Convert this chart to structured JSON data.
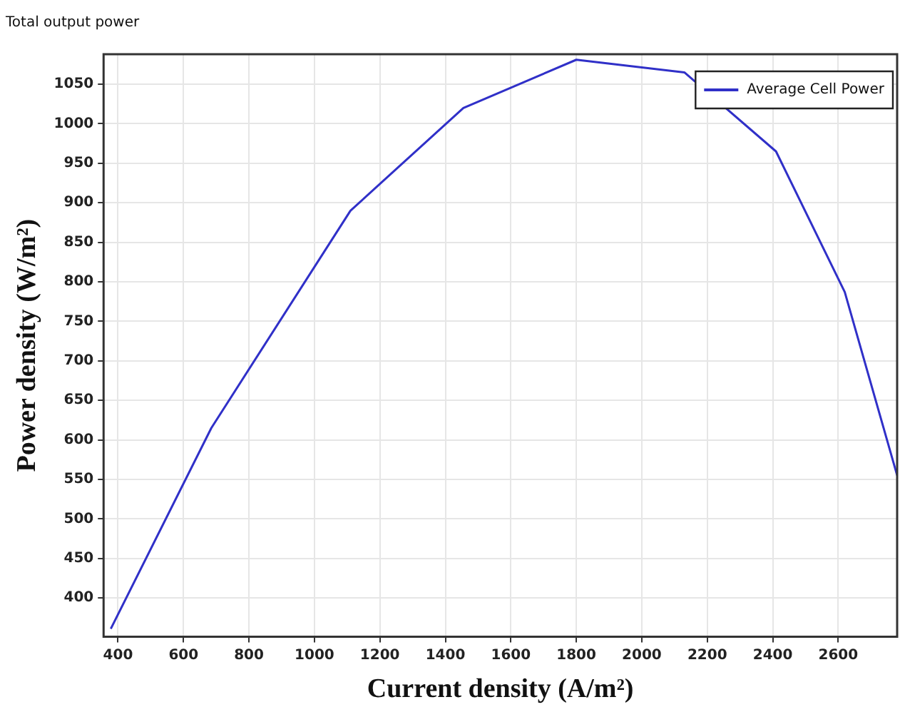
{
  "chart_data": {
    "type": "line",
    "title": "Total output power",
    "xlabel": "Current density (A/m²)",
    "ylabel": "Power density (W/m²)",
    "series": [
      {
        "name": "Average Cell Power",
        "color": "#3030c8",
        "x": [
          378,
          685,
          1110,
          1455,
          1800,
          2130,
          2410,
          2620,
          2780
        ],
        "values": [
          361,
          615,
          890,
          1020,
          1081,
          1065,
          965,
          787,
          555
        ]
      }
    ],
    "xlim": [
      356,
      2780
    ],
    "xticks": [
      400,
      600,
      800,
      1000,
      1200,
      1400,
      1600,
      1800,
      2000,
      2200,
      2400,
      2600
    ],
    "ylim": [
      351,
      1088
    ],
    "yticks": [
      400,
      450,
      500,
      550,
      600,
      650,
      700,
      750,
      800,
      850,
      900,
      950,
      1000,
      1050
    ],
    "grid": true,
    "legend": "top right",
    "marker": "none",
    "line_style": "solid"
  }
}
